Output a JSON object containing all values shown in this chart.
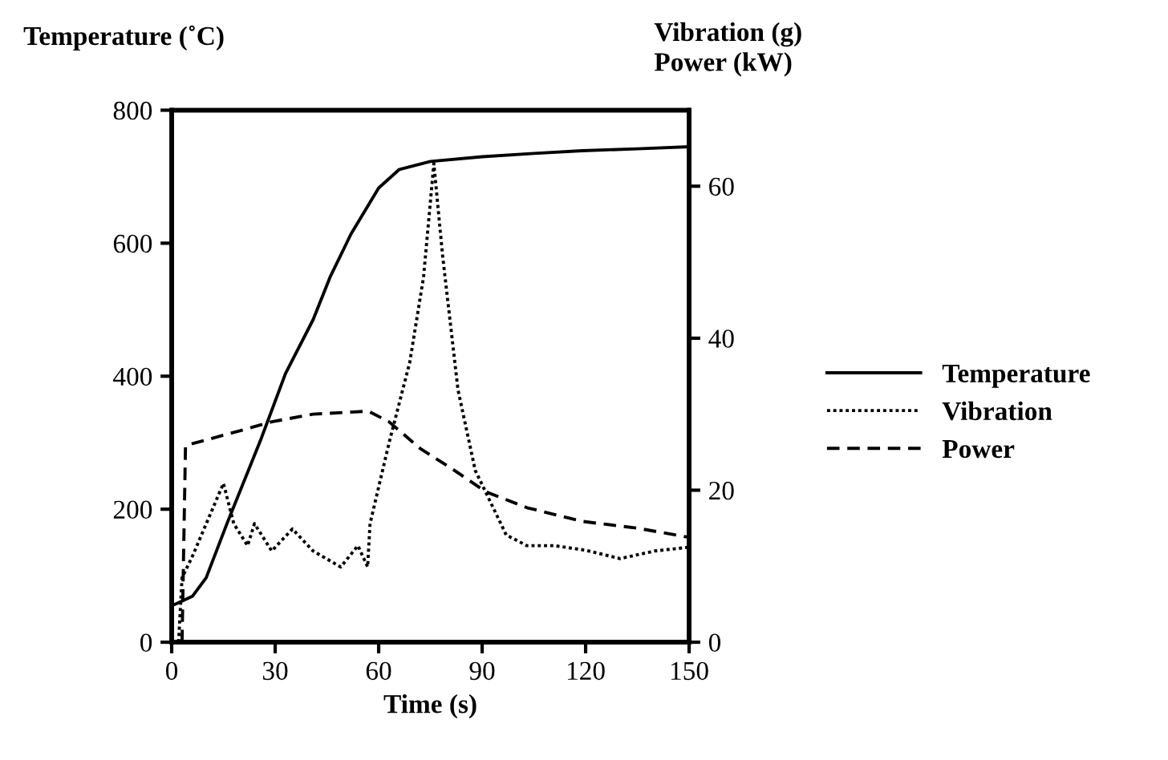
{
  "chart_data": {
    "type": "line",
    "ylabel": "Temperature (˚C)",
    "y2label": "Vibration (g)\nPower (kW)",
    "xlabel": "Time (s)",
    "xlim": [
      0,
      150
    ],
    "xticks": [
      0,
      30,
      60,
      90,
      120,
      150
    ],
    "ylim": [
      0,
      800
    ],
    "yticks": [
      0,
      200,
      400,
      600,
      800
    ],
    "y2lim": [
      0,
      70
    ],
    "y2ticks": [
      0,
      20,
      40,
      60
    ],
    "legend": "right",
    "grid": false,
    "marker": "none",
    "series": [
      {
        "name": "Temperature",
        "color": "#000000",
        "line_style": "solid",
        "x": [
          1,
          6,
          10,
          16,
          26,
          33,
          41,
          46,
          52,
          60,
          66,
          75,
          90,
          105,
          119,
          135,
          150
        ],
        "values": [
          57,
          69,
          97,
          178,
          307,
          404,
          485,
          550,
          614,
          683,
          711,
          723,
          730,
          735,
          739,
          742,
          745
        ]
      },
      {
        "name": "Vibration",
        "color": "#000000",
        "line_style": "dotted",
        "axis": "y2",
        "x": [
          2,
          3,
          6,
          12,
          15,
          18,
          22,
          24,
          29,
          35,
          41,
          49,
          54,
          56.8,
          57.5,
          63,
          69,
          73,
          76,
          78.5,
          83,
          88,
          97,
          103,
          111,
          120,
          130,
          140,
          150
        ],
        "values": [
          0,
          8.5,
          11.3,
          17.7,
          20.9,
          15.6,
          12.7,
          15.6,
          12,
          14.9,
          12,
          9.9,
          12.7,
          9.9,
          15.6,
          26.2,
          36.8,
          48,
          63,
          51,
          33.2,
          22.6,
          14.1,
          12.7,
          12.7,
          12.1,
          11,
          12,
          12.5
        ]
      },
      {
        "name": "Power",
        "color": "#000000",
        "line_style": "dashed",
        "axis": "y2",
        "x": [
          3,
          4,
          5,
          18,
          29,
          41,
          57,
          63,
          72,
          82,
          91,
          103,
          119,
          135,
          150
        ],
        "values": [
          0,
          25.8,
          26,
          27.6,
          29,
          30,
          30.4,
          29,
          25.5,
          22.6,
          19.8,
          17.7,
          15.9,
          15,
          13.8
        ]
      }
    ]
  }
}
